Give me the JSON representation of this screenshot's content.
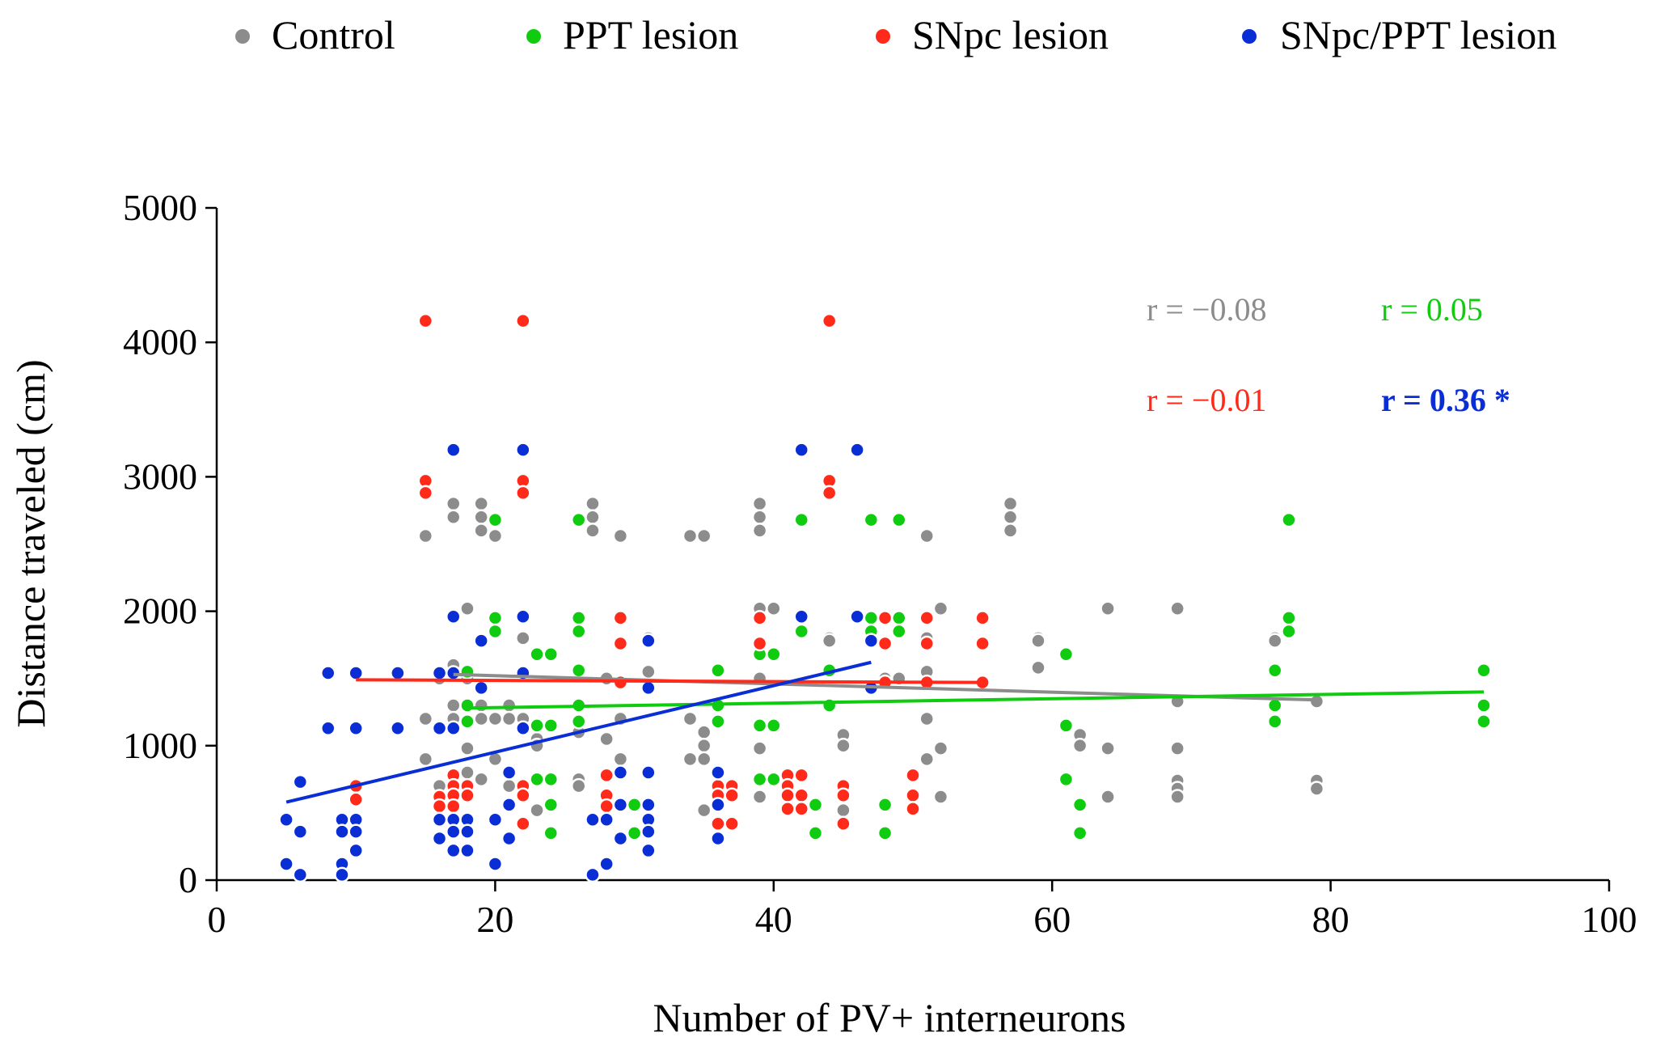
{
  "chart_data": {
    "type": "scatter",
    "title": "",
    "xlabel": "Number of PV+ interneurons",
    "ylabel": "Distance traveled (cm)",
    "xlim": [
      0,
      100
    ],
    "ylim": [
      0,
      5000
    ],
    "xticks": [
      0,
      20,
      40,
      60,
      80,
      100
    ],
    "yticks": [
      0,
      1000,
      2000,
      3000,
      4000,
      5000
    ],
    "grid": false,
    "legend_position": "top",
    "series": [
      {
        "name": "Control",
        "color": "#8c8c8c",
        "trend": [
          [
            17,
            1530
          ],
          [
            79,
            1340
          ]
        ],
        "correlation": "r = −0.08",
        "points": [
          [
            15,
            2560
          ],
          [
            15,
            1200
          ],
          [
            15,
            900
          ],
          [
            16,
            1500
          ],
          [
            16,
            700
          ],
          [
            17,
            2800
          ],
          [
            17,
            2700
          ],
          [
            17,
            1600
          ],
          [
            17,
            1300
          ],
          [
            17,
            1200
          ],
          [
            18,
            2020
          ],
          [
            18,
            1500
          ],
          [
            18,
            980
          ],
          [
            18,
            800
          ],
          [
            19,
            2800
          ],
          [
            19,
            2700
          ],
          [
            19,
            2600
          ],
          [
            19,
            1300
          ],
          [
            19,
            1200
          ],
          [
            19,
            750
          ],
          [
            20,
            2560
          ],
          [
            20,
            1200
          ],
          [
            20,
            900
          ],
          [
            21,
            1300
          ],
          [
            21,
            1200
          ],
          [
            21,
            700
          ],
          [
            22,
            1800
          ],
          [
            22,
            1550
          ],
          [
            22,
            1200
          ],
          [
            22,
            650
          ],
          [
            23,
            1050
          ],
          [
            23,
            1000
          ],
          [
            23,
            520
          ],
          [
            26,
            1100
          ],
          [
            26,
            750
          ],
          [
            26,
            700
          ],
          [
            27,
            2800
          ],
          [
            27,
            2700
          ],
          [
            27,
            2600
          ],
          [
            28,
            1500
          ],
          [
            28,
            1050
          ],
          [
            29,
            2560
          ],
          [
            29,
            1200
          ],
          [
            29,
            900
          ],
          [
            29,
            550
          ],
          [
            31,
            1800
          ],
          [
            31,
            1550
          ],
          [
            31,
            550
          ],
          [
            34,
            2560
          ],
          [
            34,
            1200
          ],
          [
            34,
            900
          ],
          [
            35,
            2560
          ],
          [
            35,
            1100
          ],
          [
            35,
            1000
          ],
          [
            35,
            900
          ],
          [
            35,
            520
          ],
          [
            39,
            2800
          ],
          [
            39,
            2700
          ],
          [
            39,
            2600
          ],
          [
            39,
            2020
          ],
          [
            39,
            1500
          ],
          [
            39,
            980
          ],
          [
            39,
            620
          ],
          [
            40,
            2020
          ],
          [
            44,
            1800
          ],
          [
            44,
            1780
          ],
          [
            45,
            1080
          ],
          [
            45,
            1000
          ],
          [
            45,
            520
          ],
          [
            47,
            1800
          ],
          [
            48,
            1500
          ],
          [
            49,
            1500
          ],
          [
            51,
            2560
          ],
          [
            51,
            1800
          ],
          [
            51,
            1550
          ],
          [
            51,
            1200
          ],
          [
            51,
            900
          ],
          [
            52,
            2020
          ],
          [
            52,
            980
          ],
          [
            52,
            620
          ],
          [
            57,
            2800
          ],
          [
            57,
            2700
          ],
          [
            57,
            2600
          ],
          [
            59,
            1800
          ],
          [
            59,
            1780
          ],
          [
            59,
            1580
          ],
          [
            62,
            1080
          ],
          [
            62,
            1000
          ],
          [
            62,
            550
          ],
          [
            64,
            2020
          ],
          [
            64,
            980
          ],
          [
            64,
            620
          ],
          [
            69,
            2020
          ],
          [
            69,
            1330
          ],
          [
            69,
            980
          ],
          [
            69,
            740
          ],
          [
            69,
            680
          ],
          [
            69,
            620
          ],
          [
            76,
            1800
          ],
          [
            76,
            1780
          ],
          [
            79,
            1330
          ],
          [
            79,
            740
          ],
          [
            79,
            680
          ]
        ]
      },
      {
        "name": "PPT lesion",
        "color": "#10cc10",
        "trend": [
          [
            18,
            1280
          ],
          [
            91,
            1400
          ]
        ],
        "correlation": "r = 0.05",
        "points": [
          [
            18,
            1550
          ],
          [
            18,
            1300
          ],
          [
            18,
            1180
          ],
          [
            20,
            2680
          ],
          [
            20,
            1950
          ],
          [
            20,
            1850
          ],
          [
            23,
            1680
          ],
          [
            23,
            1150
          ],
          [
            23,
            750
          ],
          [
            24,
            1680
          ],
          [
            24,
            1150
          ],
          [
            24,
            750
          ],
          [
            24,
            560
          ],
          [
            24,
            350
          ],
          [
            26,
            2680
          ],
          [
            26,
            1950
          ],
          [
            26,
            1850
          ],
          [
            26,
            1560
          ],
          [
            26,
            1300
          ],
          [
            26,
            1180
          ],
          [
            30,
            560
          ],
          [
            30,
            350
          ],
          [
            36,
            1560
          ],
          [
            36,
            1300
          ],
          [
            36,
            1180
          ],
          [
            39,
            1680
          ],
          [
            39,
            1150
          ],
          [
            39,
            750
          ],
          [
            40,
            1680
          ],
          [
            40,
            1150
          ],
          [
            40,
            750
          ],
          [
            42,
            2680
          ],
          [
            42,
            1850
          ],
          [
            43,
            560
          ],
          [
            43,
            350
          ],
          [
            44,
            1560
          ],
          [
            44,
            1300
          ],
          [
            47,
            2680
          ],
          [
            47,
            1950
          ],
          [
            47,
            1850
          ],
          [
            48,
            560
          ],
          [
            48,
            350
          ],
          [
            49,
            2680
          ],
          [
            49,
            1950
          ],
          [
            49,
            1850
          ],
          [
            61,
            1680
          ],
          [
            61,
            1150
          ],
          [
            61,
            750
          ],
          [
            62,
            560
          ],
          [
            62,
            350
          ],
          [
            76,
            1560
          ],
          [
            76,
            1300
          ],
          [
            76,
            1180
          ],
          [
            77,
            2680
          ],
          [
            77,
            1950
          ],
          [
            77,
            1850
          ],
          [
            91,
            1560
          ],
          [
            91,
            1300
          ],
          [
            91,
            1180
          ]
        ]
      },
      {
        "name": "SNpc lesion",
        "color": "#ff2a1a",
        "trend": [
          [
            10,
            1490
          ],
          [
            55,
            1470
          ]
        ],
        "correlation": "r = −0.01",
        "points": [
          [
            10,
            700
          ],
          [
            10,
            600
          ],
          [
            15,
            4160
          ],
          [
            15,
            2970
          ],
          [
            15,
            2880
          ],
          [
            16,
            620
          ],
          [
            16,
            550
          ],
          [
            17,
            780
          ],
          [
            17,
            700
          ],
          [
            17,
            630
          ],
          [
            17,
            550
          ],
          [
            18,
            700
          ],
          [
            18,
            630
          ],
          [
            22,
            4160
          ],
          [
            22,
            2970
          ],
          [
            22,
            2880
          ],
          [
            22,
            700
          ],
          [
            22,
            630
          ],
          [
            22,
            420
          ],
          [
            28,
            780
          ],
          [
            28,
            630
          ],
          [
            28,
            550
          ],
          [
            29,
            1950
          ],
          [
            29,
            1760
          ],
          [
            29,
            1470
          ],
          [
            36,
            700
          ],
          [
            36,
            630
          ],
          [
            36,
            420
          ],
          [
            37,
            700
          ],
          [
            37,
            630
          ],
          [
            37,
            420
          ],
          [
            39,
            1950
          ],
          [
            39,
            1760
          ],
          [
            41,
            780
          ],
          [
            41,
            700
          ],
          [
            41,
            630
          ],
          [
            41,
            530
          ],
          [
            42,
            780
          ],
          [
            42,
            630
          ],
          [
            42,
            530
          ],
          [
            44,
            4160
          ],
          [
            44,
            2970
          ],
          [
            44,
            2880
          ],
          [
            45,
            700
          ],
          [
            45,
            630
          ],
          [
            45,
            420
          ],
          [
            48,
            1950
          ],
          [
            48,
            1760
          ],
          [
            48,
            1470
          ],
          [
            50,
            780
          ],
          [
            50,
            630
          ],
          [
            50,
            530
          ],
          [
            51,
            1950
          ],
          [
            51,
            1760
          ],
          [
            51,
            1470
          ],
          [
            55,
            1950
          ],
          [
            55,
            1760
          ],
          [
            55,
            1470
          ]
        ]
      },
      {
        "name": "SNpc/PPT lesion",
        "color": "#0a2ed6",
        "trend": [
          [
            5,
            580
          ],
          [
            47,
            1620
          ]
        ],
        "correlation": "r = 0.36 *",
        "points": [
          [
            5,
            450
          ],
          [
            5,
            120
          ],
          [
            6,
            730
          ],
          [
            6,
            360
          ],
          [
            6,
            40
          ],
          [
            8,
            1540
          ],
          [
            8,
            1130
          ],
          [
            9,
            450
          ],
          [
            9,
            360
          ],
          [
            9,
            120
          ],
          [
            9,
            40
          ],
          [
            10,
            1540
          ],
          [
            10,
            1130
          ],
          [
            10,
            450
          ],
          [
            10,
            360
          ],
          [
            10,
            220
          ],
          [
            13,
            1540
          ],
          [
            13,
            1130
          ],
          [
            16,
            1540
          ],
          [
            16,
            1130
          ],
          [
            16,
            450
          ],
          [
            16,
            310
          ],
          [
            17,
            3200
          ],
          [
            17,
            1960
          ],
          [
            17,
            1540
          ],
          [
            17,
            1130
          ],
          [
            17,
            450
          ],
          [
            17,
            360
          ],
          [
            17,
            220
          ],
          [
            18,
            450
          ],
          [
            18,
            360
          ],
          [
            18,
            220
          ],
          [
            19,
            1780
          ],
          [
            19,
            1430
          ],
          [
            20,
            450
          ],
          [
            20,
            120
          ],
          [
            21,
            800
          ],
          [
            21,
            560
          ],
          [
            21,
            310
          ],
          [
            22,
            3200
          ],
          [
            22,
            1960
          ],
          [
            22,
            1540
          ],
          [
            22,
            1130
          ],
          [
            27,
            450
          ],
          [
            27,
            40
          ],
          [
            28,
            450
          ],
          [
            28,
            120
          ],
          [
            29,
            800
          ],
          [
            29,
            560
          ],
          [
            29,
            310
          ],
          [
            31,
            1780
          ],
          [
            31,
            1430
          ],
          [
            31,
            800
          ],
          [
            31,
            560
          ],
          [
            31,
            450
          ],
          [
            31,
            360
          ],
          [
            31,
            220
          ],
          [
            36,
            800
          ],
          [
            36,
            560
          ],
          [
            36,
            310
          ],
          [
            42,
            3200
          ],
          [
            42,
            1960
          ],
          [
            46,
            3200
          ],
          [
            46,
            1960
          ],
          [
            47,
            1780
          ],
          [
            47,
            1430
          ]
        ]
      }
    ]
  }
}
